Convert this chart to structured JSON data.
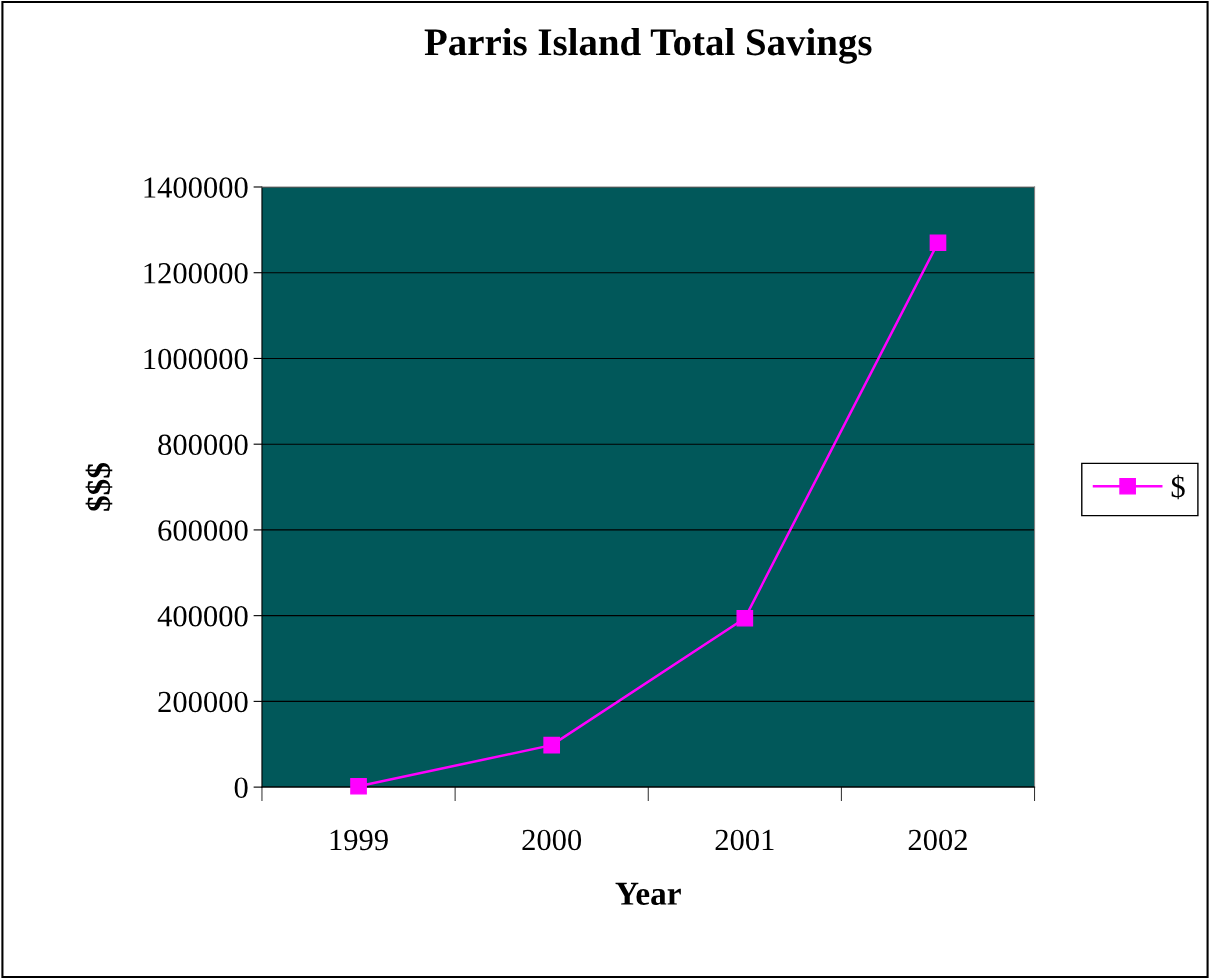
{
  "chart_data": {
    "type": "line",
    "title": "Parris Island Total Savings",
    "xlabel": "Year",
    "ylabel": "$$$",
    "categories": [
      "1999",
      "2000",
      "2001",
      "2002"
    ],
    "series": [
      {
        "name": "$",
        "color": "#ff00ff",
        "values": [
          2000,
          98000,
          394000,
          1270000
        ]
      }
    ],
    "ylim": [
      0,
      1400000
    ],
    "yticks": [
      0,
      200000,
      400000,
      600000,
      800000,
      1000000,
      1200000,
      1400000
    ],
    "grid": "y",
    "legend": "right",
    "marker": "square",
    "line_style": "solid"
  }
}
